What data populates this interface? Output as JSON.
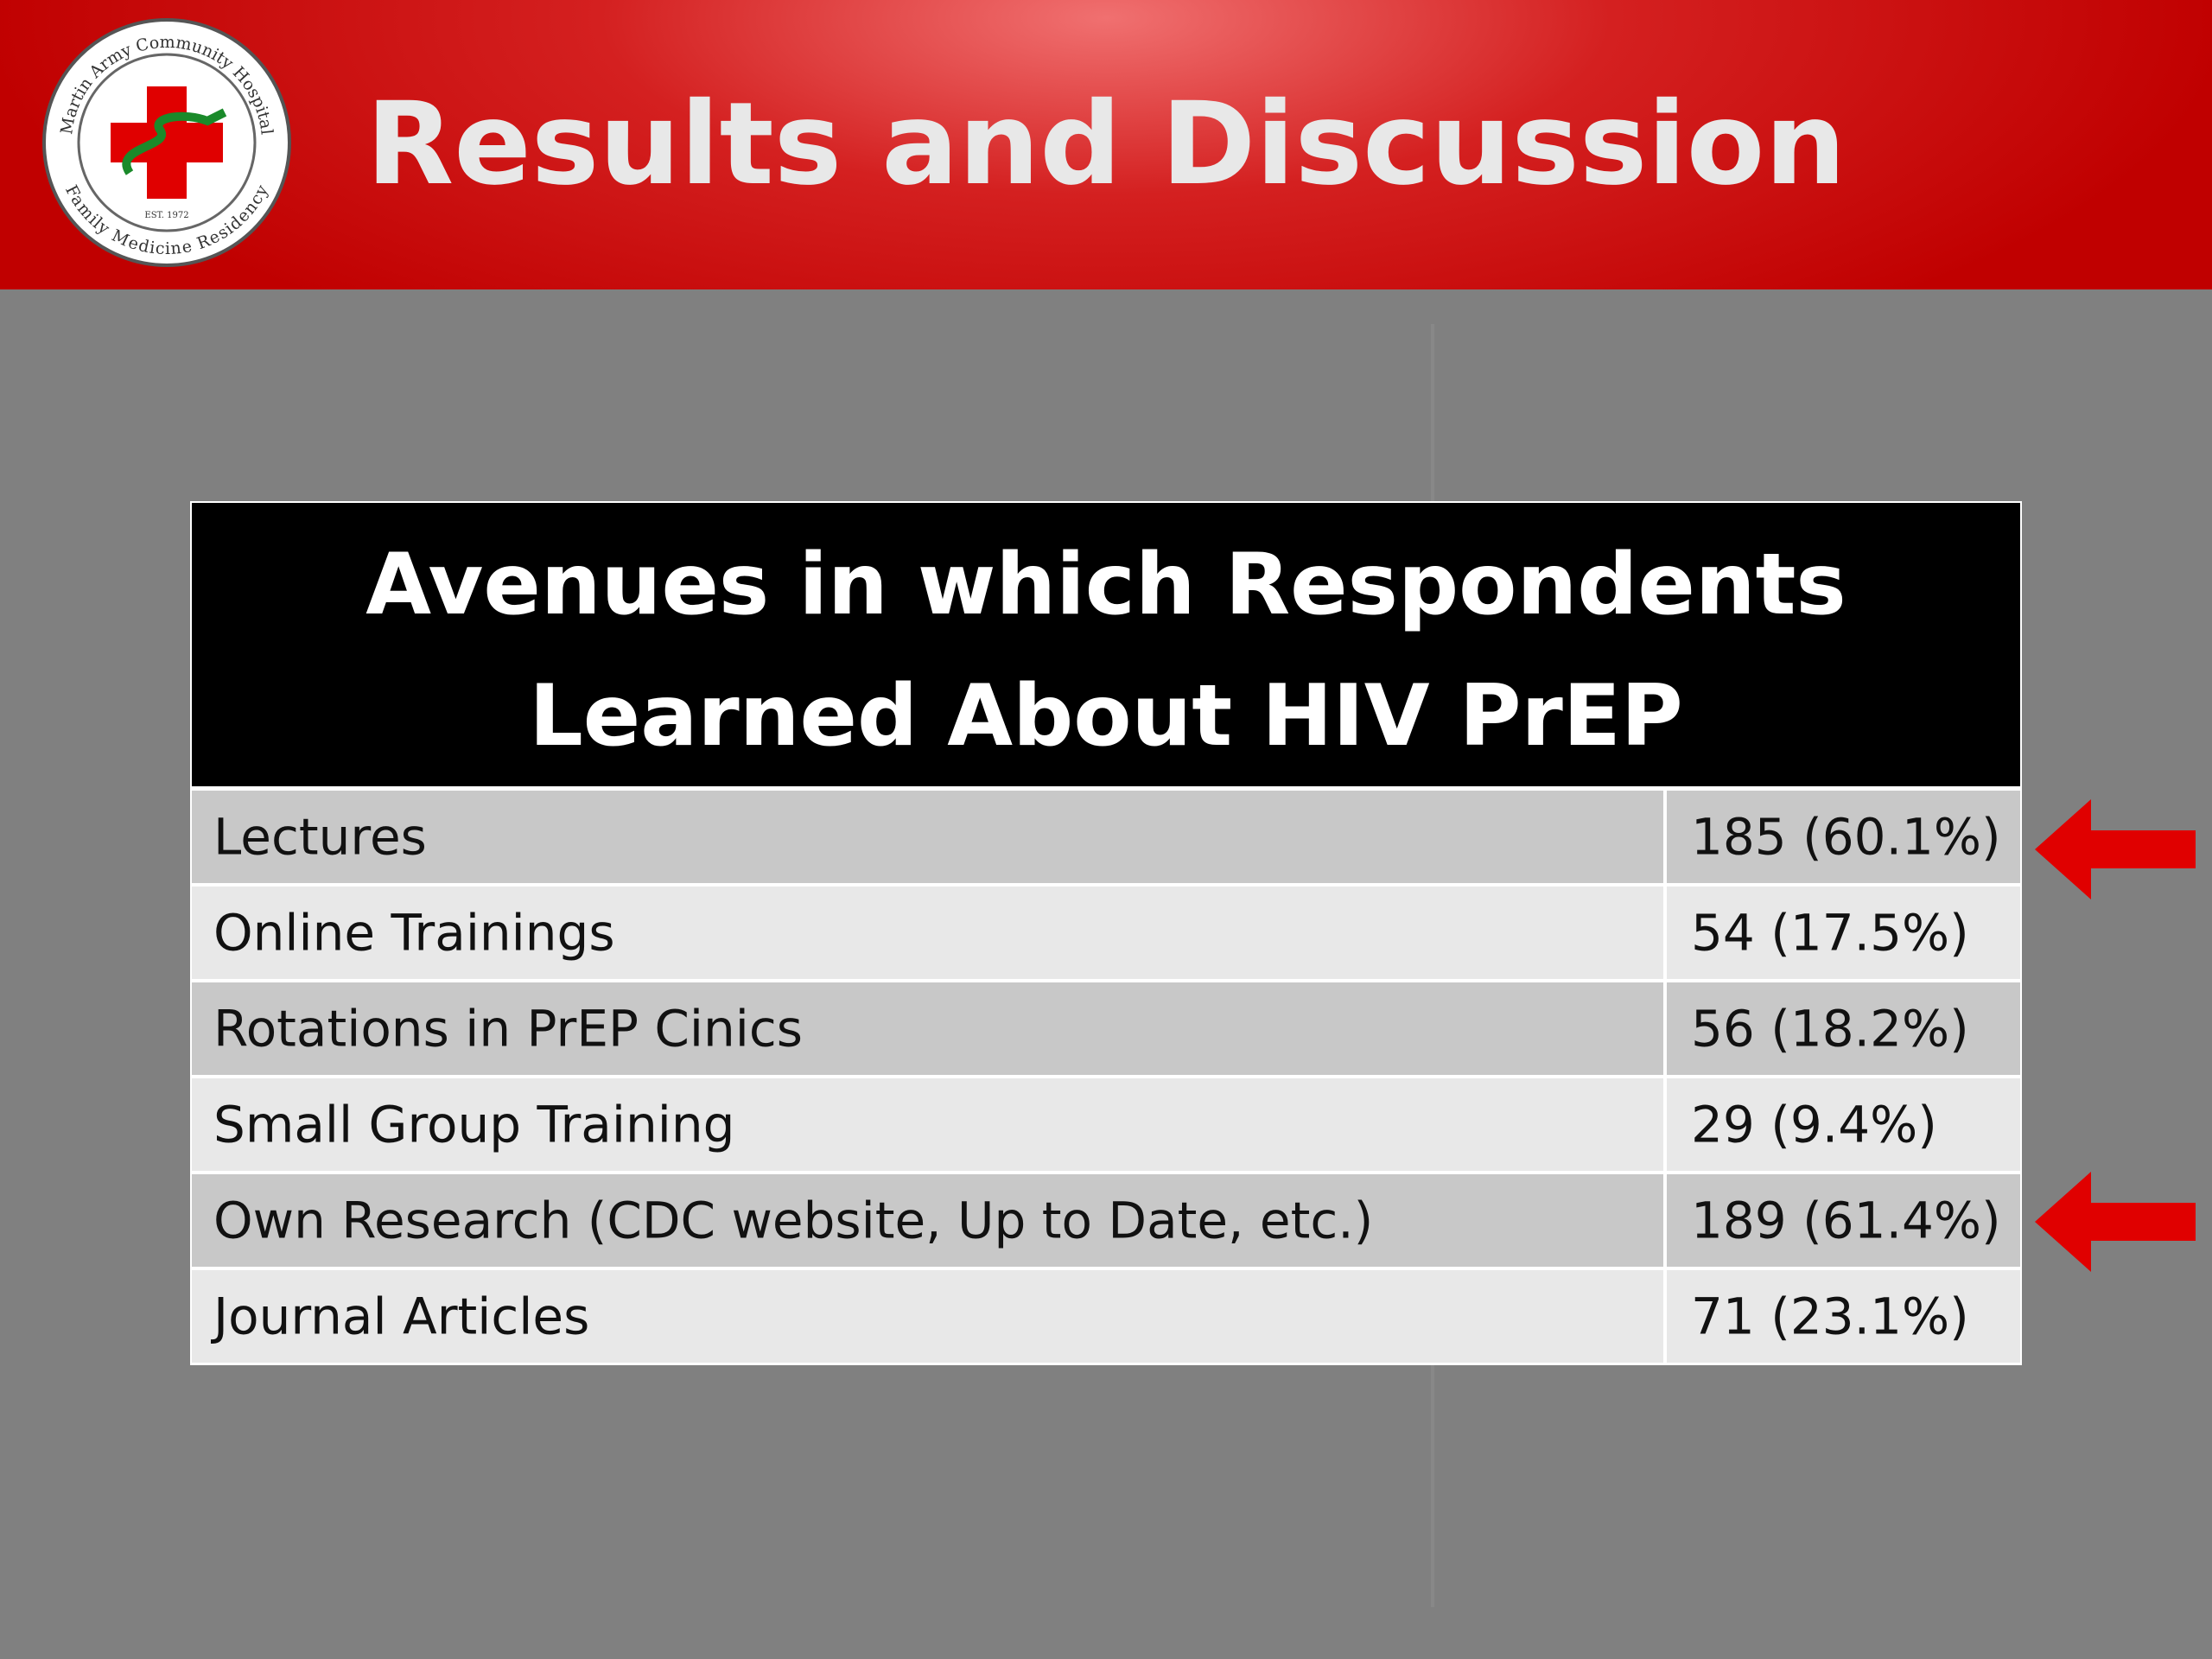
{
  "header": {
    "title": "Results and Discussion",
    "logo": {
      "top_text": "Martin Army Community Hospital",
      "bottom_text": "Family Medicine Residency",
      "est": "EST. 1972"
    }
  },
  "table": {
    "title_lines": [
      "Avenues in which Respondents",
      "Learned About HIV PrEP"
    ],
    "rows": [
      [
        "Lectures",
        "185 (60.1%)"
      ],
      [
        "Online Trainings",
        "54 (17.5%)"
      ],
      [
        "Rotations in PrEP Cinics",
        "56 (18.2%)"
      ],
      [
        "Small Group Training",
        "29 (9.4%)"
      ],
      [
        "Own Research (CDC website, Up to Date, etc.)",
        "189 (61.4%)"
      ],
      [
        "Journal Articles",
        "71 (23.1%)"
      ]
    ]
  }
}
